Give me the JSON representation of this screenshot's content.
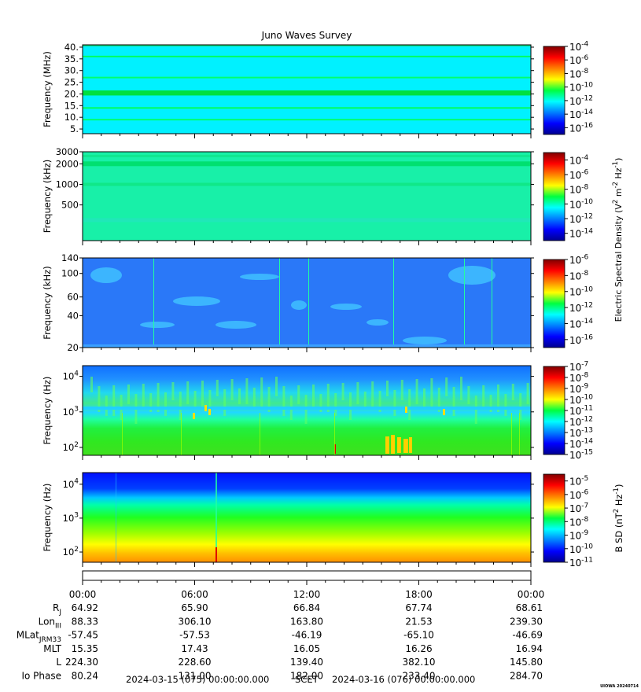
{
  "title": "Juno Waves Survey",
  "watermark": "UIOWA 20240714",
  "chart_data": [
    {
      "type": "heatmap",
      "panel": "HFR high",
      "ylabel": "Frequency (MHz)",
      "yticks": [
        "40.",
        "35.",
        "30.",
        "25.",
        "20.",
        "15.",
        "10.",
        "5."
      ],
      "yrange": [
        3,
        41
      ],
      "colorbar_ticks": [
        "10^-4",
        "10^-6",
        "10^-8",
        "10^-10",
        "10^-12",
        "10^-14",
        "10^-16"
      ],
      "colorbar_range_exp": [
        -17,
        -4
      ],
      "dominant_level_exp": -12.3
    },
    {
      "type": "heatmap",
      "panel": "HFR low",
      "ylabel": "Frequency (kHz)",
      "yticks": [
        "3000",
        "2000",
        "1000",
        "500"
      ],
      "yrange_log": [
        150,
        3000
      ],
      "colorbar_ticks": [
        "10^-4",
        "10^-6",
        "10^-8",
        "10^-10",
        "10^-12",
        "10^-14"
      ],
      "colorbar_range_exp": [
        -15,
        -3
      ],
      "dominant_level_exp": -11.8
    },
    {
      "type": "heatmap",
      "panel": "LFR high",
      "ylabel": "Frequency (kHz)",
      "yticks": [
        "140",
        "100",
        "60",
        "40",
        "20"
      ],
      "yrange_log": [
        20,
        140
      ],
      "colorbar_ticks": [
        "10^-6",
        "10^-8",
        "10^-10",
        "10^-12",
        "10^-14",
        "10^-16"
      ],
      "colorbar_range_exp": [
        -17,
        -6
      ],
      "dominant_level_exp": -14.2
    },
    {
      "type": "heatmap",
      "panel": "LFR low",
      "ylabel": "Frequency (Hz)",
      "yticks": [
        "10^4",
        "10^3",
        "10^2"
      ],
      "yrange_log": [
        60,
        20000
      ],
      "colorbar_ticks": [
        "10^-7",
        "10^-8",
        "10^-9",
        "10^-10",
        "10^-11",
        "10^-12",
        "10^-13",
        "10^-14",
        "10^-15"
      ],
      "colorbar_range_exp": [
        -15,
        -7
      ],
      "dominant_level_exp": -11.5
    },
    {
      "type": "heatmap",
      "panel": "Magnetic",
      "ylabel": "Frequency (Hz)",
      "yticks": [
        "10^4",
        "10^3",
        "10^2"
      ],
      "yrange_log": [
        50,
        22000
      ],
      "colorbar_label": "B SD (nT^2 Hz^-1)",
      "colorbar_ticks": [
        "10^-5",
        "10^-6",
        "10^-7",
        "10^-8",
        "10^-9",
        "10^-10",
        "10^-11"
      ],
      "colorbar_range_exp": [
        -11,
        -4.5
      ]
    }
  ],
  "electric_colorbar_label": "Electric Spectral Density (V^2 m^-2 Hz^-1)",
  "time_ticks": [
    "00:00",
    "06:00",
    "12:00",
    "18:00",
    "00:00"
  ],
  "ephemeris": [
    {
      "label": "R_J",
      "values": [
        "64.92",
        "65.90",
        "66.84",
        "67.74",
        "68.61"
      ]
    },
    {
      "label": "Lon_III",
      "values": [
        "88.33",
        "306.10",
        "163.80",
        "21.53",
        "239.30"
      ]
    },
    {
      "label": "MLat_JRM33",
      "values": [
        "-57.45",
        "-57.53",
        "-46.19",
        "-65.10",
        "-46.69"
      ]
    },
    {
      "label": "MLT",
      "values": [
        "15.35",
        "17.43",
        "16.05",
        "16.26",
        "16.94"
      ]
    },
    {
      "label": "L",
      "values": [
        "224.30",
        "228.60",
        "139.40",
        "382.10",
        "145.80"
      ]
    },
    {
      "label": "Io Phase",
      "values": [
        "80.24",
        "131.00",
        "182.00",
        "233.40",
        "284.70"
      ]
    }
  ],
  "footer": {
    "start": "2024-03-15 (075) 00:00:00.000",
    "scet": "SCET",
    "end": "2024-03-16 (076) 00:00:00.000"
  }
}
